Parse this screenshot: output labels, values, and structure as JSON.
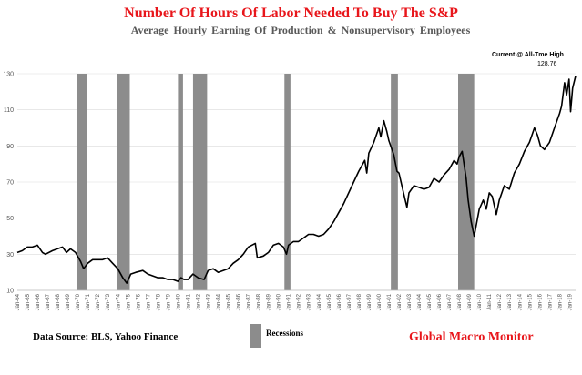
{
  "title": "Number Of Hours Of Labor Needed To Buy The S&P",
  "subtitle": "Average Hourly Earning Of Production & Nonsupervisory Employees",
  "source": "Data Source:   BLS, Yahoo Finance",
  "legend_label": "Recessions",
  "brand": "Global Macro Monitor",
  "annotation": {
    "label": "Current @ All-Tme High",
    "value": "128.76"
  },
  "colors": {
    "title": "#e8161b",
    "subtitle": "#595959",
    "line": "#000000",
    "recession": "#8c8c8c",
    "grid": "#d9d9d9"
  },
  "chart_data": {
    "type": "line",
    "ylim": [
      10,
      130
    ],
    "yticks": [
      10,
      30,
      50,
      70,
      90,
      110,
      130
    ],
    "grid": "horizontal",
    "x_start": 1964,
    "x_end": 2019.6,
    "xtick_labels": [
      "Jan-64",
      "Jan-65",
      "Jan-66",
      "Jan-67",
      "Jan-68",
      "Jan-69",
      "Jan-70",
      "Jan-71",
      "Jan-72",
      "Jan-73",
      "Jan-74",
      "Jan-75",
      "Jan-76",
      "Jan-77",
      "Jan-78",
      "Jan-79",
      "Jan-80",
      "Jan-81",
      "Jan-82",
      "Jan-83",
      "Jan-84",
      "Jan-85",
      "Jan-86",
      "Jan-87",
      "Jan-88",
      "Jan-89",
      "Jan-90",
      "Jan-91",
      "Jan-92",
      "Jan-93",
      "Jan-94",
      "Jan-95",
      "Jan-96",
      "Jan-97",
      "Jan-98",
      "Jan-99",
      "Jan-00",
      "Jan-01",
      "Jan-02",
      "Jan-03",
      "Jan-04",
      "Jan-05",
      "Jan-06",
      "Jan-07",
      "Jan-08",
      "Jan-09",
      "Jan-10",
      "Jan-11",
      "Jan-12",
      "Jan-13",
      "Jan-14",
      "Jan-15",
      "Jan-16",
      "Jan-17",
      "Jan-18",
      "Jan-19"
    ],
    "recessions": [
      [
        1969.9,
        1970.9
      ],
      [
        1973.9,
        1975.2
      ],
      [
        1980.0,
        1980.5
      ],
      [
        1981.5,
        1982.9
      ],
      [
        1990.6,
        1991.2
      ],
      [
        2001.2,
        2001.9
      ],
      [
        2007.9,
        2009.5
      ]
    ],
    "series": [
      {
        "x": [
          1964.0,
          1964.5,
          1965.0,
          1965.5,
          1966.0,
          1966.5,
          1966.8,
          1967.5,
          1968.0,
          1968.5,
          1968.9,
          1969.3,
          1969.8,
          1970.3,
          1970.6,
          1971.0,
          1971.5,
          1972.0,
          1972.5,
          1973.0,
          1973.5,
          1974.0,
          1974.5,
          1974.9,
          1975.3,
          1975.8,
          1976.5,
          1977.0,
          1977.5,
          1978.0,
          1978.5,
          1979.0,
          1979.5,
          1980.0,
          1980.3,
          1980.6,
          1981.0,
          1981.5,
          1982.0,
          1982.6,
          1983.0,
          1983.5,
          1984.0,
          1984.5,
          1985.0,
          1985.5,
          1986.0,
          1986.5,
          1987.0,
          1987.7,
          1987.9,
          1988.5,
          1989.0,
          1989.5,
          1990.0,
          1990.5,
          1990.8,
          1991.0,
          1991.5,
          1992.0,
          1992.5,
          1993.0,
          1993.5,
          1994.0,
          1994.5,
          1995.0,
          1995.5,
          1996.0,
          1996.5,
          1997.0,
          1997.5,
          1998.0,
          1998.6,
          1998.8,
          1999.0,
          1999.5,
          2000.0,
          2000.2,
          2000.5,
          2000.8,
          2001.0,
          2001.5,
          2001.8,
          2002.0,
          2002.5,
          2002.8,
          2003.0,
          2003.5,
          2004.0,
          2004.5,
          2005.0,
          2005.5,
          2006.0,
          2006.5,
          2007.0,
          2007.5,
          2007.8,
          2008.0,
          2008.3,
          2008.7,
          2008.9,
          2009.2,
          2009.5,
          2010.0,
          2010.4,
          2010.7,
          2011.0,
          2011.3,
          2011.7,
          2012.0,
          2012.5,
          2013.0,
          2013.5,
          2014.0,
          2014.5,
          2015.0,
          2015.5,
          2015.8,
          2016.1,
          2016.5,
          2017.0,
          2017.5,
          2018.0,
          2018.2,
          2018.5,
          2018.7,
          2018.95,
          2019.1,
          2019.3,
          2019.6
        ],
        "values": [
          31,
          32,
          34,
          34,
          35,
          31,
          30,
          32,
          33,
          34,
          31,
          33,
          31,
          26,
          22,
          25,
          27,
          27,
          27,
          28,
          25,
          22,
          17,
          14,
          19,
          20,
          21,
          19,
          18,
          17,
          17,
          16,
          16,
          15,
          17,
          16,
          16,
          19,
          17,
          16,
          21,
          22,
          20,
          21,
          22,
          25,
          27,
          30,
          34,
          36,
          28,
          29,
          31,
          35,
          36,
          34,
          30,
          35,
          37,
          37,
          39,
          41,
          41,
          40,
          41,
          44,
          48,
          53,
          58,
          64,
          70,
          76,
          82,
          75,
          86,
          92,
          100,
          95,
          104,
          98,
          93,
          85,
          76,
          75,
          63,
          56,
          64,
          68,
          67,
          66,
          67,
          72,
          70,
          74,
          77,
          82,
          80,
          84,
          87,
          72,
          60,
          48,
          40,
          55,
          60,
          55,
          64,
          62,
          52,
          60,
          68,
          66,
          75,
          80,
          87,
          92,
          100,
          96,
          90,
          88,
          92,
          100,
          108,
          112,
          125,
          118,
          127,
          109,
          122,
          128.76
        ]
      }
    ]
  }
}
